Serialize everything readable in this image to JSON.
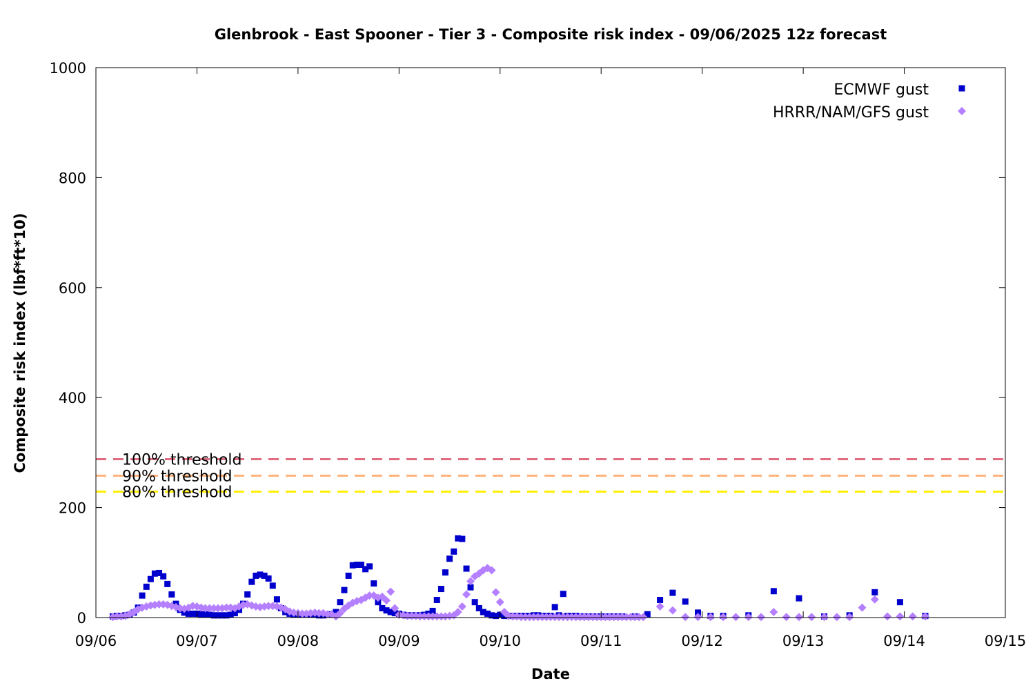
{
  "chart_data": {
    "type": "scatter",
    "title": "Glenbrook - East Spooner - Tier 3 - Composite risk index - 09/06/2025 12z forecast",
    "xlabel": "Date",
    "ylabel": "Composite risk index (lbf*ft*10)",
    "xlim": [
      0,
      9
    ],
    "ylim": [
      0,
      1000
    ],
    "x_tick_labels": [
      "09/06",
      "09/07",
      "09/08",
      "09/09",
      "09/10",
      "09/11",
      "09/12",
      "09/13",
      "09/14",
      "09/15"
    ],
    "y_ticks": [
      0,
      200,
      400,
      600,
      800,
      1000
    ],
    "grid": false,
    "legend_position": "top-right",
    "x_unit_note": "x = days since 09/06 00z",
    "thresholds": [
      {
        "name": "100% threshold",
        "value": 288,
        "color": "#e06c80"
      },
      {
        "name": "90% threshold",
        "value": 258,
        "color": "#ffb27a"
      },
      {
        "name": "80% threshold",
        "value": 229,
        "color": "#ffee00"
      }
    ],
    "series": [
      {
        "name": "ECMWF gust",
        "marker": "square",
        "color": "#0000cc",
        "points": [
          [
            0.167,
            2
          ],
          [
            0.208,
            3
          ],
          [
            0.25,
            3
          ],
          [
            0.292,
            4
          ],
          [
            0.333,
            5
          ],
          [
            0.375,
            9
          ],
          [
            0.417,
            18
          ],
          [
            0.458,
            40
          ],
          [
            0.5,
            56
          ],
          [
            0.542,
            70
          ],
          [
            0.583,
            80
          ],
          [
            0.625,
            81
          ],
          [
            0.667,
            75
          ],
          [
            0.708,
            61
          ],
          [
            0.75,
            42
          ],
          [
            0.792,
            25
          ],
          [
            0.833,
            14
          ],
          [
            0.875,
            9
          ],
          [
            0.917,
            7
          ],
          [
            0.958,
            7
          ],
          [
            1.0,
            7
          ],
          [
            1.042,
            6
          ],
          [
            1.083,
            6
          ],
          [
            1.125,
            5
          ],
          [
            1.167,
            4
          ],
          [
            1.208,
            4
          ],
          [
            1.25,
            4
          ],
          [
            1.292,
            4
          ],
          [
            1.333,
            5
          ],
          [
            1.375,
            8
          ],
          [
            1.417,
            14
          ],
          [
            1.458,
            25
          ],
          [
            1.5,
            42
          ],
          [
            1.542,
            65
          ],
          [
            1.583,
            76
          ],
          [
            1.625,
            78
          ],
          [
            1.667,
            76
          ],
          [
            1.708,
            71
          ],
          [
            1.75,
            58
          ],
          [
            1.792,
            33
          ],
          [
            1.833,
            17
          ],
          [
            1.875,
            10
          ],
          [
            1.917,
            7
          ],
          [
            1.958,
            6
          ],
          [
            2.0,
            5
          ],
          [
            2.042,
            5
          ],
          [
            2.083,
            5
          ],
          [
            2.125,
            5
          ],
          [
            2.167,
            5
          ],
          [
            2.208,
            4
          ],
          [
            2.25,
            4
          ],
          [
            2.292,
            5
          ],
          [
            2.333,
            6
          ],
          [
            2.375,
            10
          ],
          [
            2.417,
            28
          ],
          [
            2.458,
            50
          ],
          [
            2.5,
            76
          ],
          [
            2.542,
            95
          ],
          [
            2.583,
            96
          ],
          [
            2.625,
            96
          ],
          [
            2.667,
            88
          ],
          [
            2.708,
            93
          ],
          [
            2.75,
            62
          ],
          [
            2.792,
            28
          ],
          [
            2.833,
            17
          ],
          [
            2.875,
            13
          ],
          [
            2.917,
            10
          ],
          [
            2.958,
            8
          ],
          [
            3.0,
            7
          ],
          [
            3.042,
            5
          ],
          [
            3.083,
            4
          ],
          [
            3.125,
            4
          ],
          [
            3.167,
            4
          ],
          [
            3.208,
            4
          ],
          [
            3.25,
            5
          ],
          [
            3.292,
            7
          ],
          [
            3.333,
            12
          ],
          [
            3.375,
            32
          ],
          [
            3.417,
            52
          ],
          [
            3.458,
            82
          ],
          [
            3.5,
            107
          ],
          [
            3.542,
            120
          ],
          [
            3.583,
            144
          ],
          [
            3.625,
            143
          ],
          [
            3.667,
            89
          ],
          [
            3.708,
            55
          ],
          [
            3.75,
            28
          ],
          [
            3.792,
            17
          ],
          [
            3.833,
            10
          ],
          [
            3.875,
            7
          ],
          [
            3.917,
            4
          ],
          [
            3.958,
            3
          ],
          [
            4.0,
            5
          ],
          [
            4.042,
            3
          ],
          [
            4.083,
            3
          ],
          [
            4.125,
            3
          ],
          [
            4.167,
            3
          ],
          [
            4.208,
            3
          ],
          [
            4.25,
            3
          ],
          [
            4.292,
            3
          ],
          [
            4.333,
            4
          ],
          [
            4.375,
            4
          ],
          [
            4.417,
            3
          ],
          [
            4.458,
            3
          ],
          [
            4.5,
            3
          ],
          [
            4.542,
            19
          ],
          [
            4.583,
            4
          ],
          [
            4.625,
            43
          ],
          [
            4.667,
            3
          ],
          [
            4.708,
            3
          ],
          [
            4.75,
            3
          ],
          [
            4.792,
            2
          ],
          [
            4.833,
            2
          ],
          [
            4.875,
            2
          ],
          [
            4.917,
            2
          ],
          [
            4.958,
            2
          ],
          [
            5.0,
            2
          ],
          [
            5.042,
            2
          ],
          [
            5.083,
            2
          ],
          [
            5.125,
            2
          ],
          [
            5.167,
            2
          ],
          [
            5.208,
            2
          ],
          [
            5.333,
            2
          ],
          [
            5.458,
            6
          ],
          [
            5.583,
            32
          ],
          [
            5.708,
            45
          ],
          [
            5.833,
            29
          ],
          [
            5.958,
            9
          ],
          [
            6.083,
            3
          ],
          [
            6.208,
            3
          ],
          [
            6.458,
            4
          ],
          [
            6.708,
            48
          ],
          [
            6.958,
            35
          ],
          [
            7.208,
            2
          ],
          [
            7.458,
            4
          ],
          [
            7.708,
            46
          ],
          [
            7.958,
            28
          ],
          [
            8.208,
            3
          ]
        ]
      },
      {
        "name": "HRRR/NAM/GFS gust",
        "marker": "diamond",
        "color": "#b580ff",
        "points": [
          [
            0.167,
            1
          ],
          [
            0.208,
            2
          ],
          [
            0.25,
            2
          ],
          [
            0.292,
            3
          ],
          [
            0.333,
            6
          ],
          [
            0.375,
            10
          ],
          [
            0.417,
            15
          ],
          [
            0.458,
            18
          ],
          [
            0.5,
            20
          ],
          [
            0.542,
            22
          ],
          [
            0.583,
            23
          ],
          [
            0.625,
            24
          ],
          [
            0.667,
            24
          ],
          [
            0.708,
            23
          ],
          [
            0.75,
            21
          ],
          [
            0.792,
            19
          ],
          [
            0.833,
            17
          ],
          [
            0.875,
            16
          ],
          [
            0.917,
            18
          ],
          [
            0.958,
            21
          ],
          [
            1.0,
            20
          ],
          [
            1.042,
            18
          ],
          [
            1.083,
            17
          ],
          [
            1.125,
            17
          ],
          [
            1.167,
            17
          ],
          [
            1.208,
            17
          ],
          [
            1.25,
            17
          ],
          [
            1.292,
            18
          ],
          [
            1.333,
            18
          ],
          [
            1.375,
            17
          ],
          [
            1.417,
            20
          ],
          [
            1.458,
            23
          ],
          [
            1.5,
            24
          ],
          [
            1.542,
            22
          ],
          [
            1.583,
            20
          ],
          [
            1.625,
            19
          ],
          [
            1.667,
            20
          ],
          [
            1.708,
            21
          ],
          [
            1.75,
            21
          ],
          [
            1.792,
            20
          ],
          [
            1.833,
            18
          ],
          [
            1.875,
            15
          ],
          [
            1.917,
            11
          ],
          [
            1.958,
            9
          ],
          [
            2.0,
            8
          ],
          [
            2.042,
            7
          ],
          [
            2.083,
            7
          ],
          [
            2.125,
            8
          ],
          [
            2.167,
            9
          ],
          [
            2.208,
            8
          ],
          [
            2.25,
            8
          ],
          [
            2.292,
            6
          ],
          [
            2.333,
            6
          ],
          [
            2.375,
            2
          ],
          [
            2.417,
            8
          ],
          [
            2.458,
            16
          ],
          [
            2.5,
            22
          ],
          [
            2.542,
            27
          ],
          [
            2.583,
            30
          ],
          [
            2.625,
            32
          ],
          [
            2.667,
            36
          ],
          [
            2.708,
            40
          ],
          [
            2.75,
            40
          ],
          [
            2.792,
            36
          ],
          [
            2.833,
            38
          ],
          [
            2.875,
            31
          ],
          [
            2.917,
            47
          ],
          [
            2.958,
            17
          ],
          [
            3.0,
            5
          ],
          [
            3.042,
            4
          ],
          [
            3.083,
            3
          ],
          [
            3.125,
            3
          ],
          [
            3.167,
            3
          ],
          [
            3.208,
            2
          ],
          [
            3.25,
            2
          ],
          [
            3.292,
            2
          ],
          [
            3.333,
            2
          ],
          [
            3.375,
            2
          ],
          [
            3.417,
            2
          ],
          [
            3.458,
            2
          ],
          [
            3.5,
            3
          ],
          [
            3.542,
            4
          ],
          [
            3.583,
            10
          ],
          [
            3.625,
            20
          ],
          [
            3.667,
            42
          ],
          [
            3.708,
            66
          ],
          [
            3.75,
            75
          ],
          [
            3.792,
            80
          ],
          [
            3.833,
            86
          ],
          [
            3.875,
            90
          ],
          [
            3.917,
            86
          ],
          [
            3.958,
            46
          ],
          [
            4.0,
            28
          ],
          [
            4.042,
            10
          ],
          [
            4.083,
            3
          ],
          [
            4.125,
            2
          ],
          [
            4.167,
            2
          ],
          [
            4.208,
            1
          ],
          [
            4.25,
            1
          ],
          [
            4.292,
            1
          ],
          [
            4.333,
            1
          ],
          [
            4.375,
            1
          ],
          [
            4.417,
            1
          ],
          [
            4.458,
            1
          ],
          [
            4.5,
            1
          ],
          [
            4.542,
            1
          ],
          [
            4.583,
            1
          ],
          [
            4.625,
            1
          ],
          [
            4.667,
            1
          ],
          [
            4.708,
            1
          ],
          [
            4.75,
            1
          ],
          [
            4.792,
            1
          ],
          [
            4.833,
            1
          ],
          [
            4.875,
            1
          ],
          [
            4.917,
            1
          ],
          [
            4.958,
            1
          ],
          [
            5.0,
            1
          ],
          [
            5.042,
            1
          ],
          [
            5.083,
            1
          ],
          [
            5.125,
            1
          ],
          [
            5.167,
            1
          ],
          [
            5.208,
            1
          ],
          [
            5.25,
            1
          ],
          [
            5.292,
            1
          ],
          [
            5.333,
            1
          ],
          [
            5.375,
            1
          ],
          [
            5.417,
            1
          ],
          [
            5.583,
            20
          ],
          [
            5.708,
            13
          ],
          [
            5.833,
            1
          ],
          [
            5.958,
            1
          ],
          [
            6.083,
            1
          ],
          [
            6.208,
            1
          ],
          [
            6.333,
            1
          ],
          [
            6.458,
            1
          ],
          [
            6.583,
            1
          ],
          [
            6.708,
            10
          ],
          [
            6.833,
            1
          ],
          [
            6.958,
            1
          ],
          [
            7.083,
            1
          ],
          [
            7.208,
            1
          ],
          [
            7.333,
            1
          ],
          [
            7.458,
            1
          ],
          [
            7.583,
            18
          ],
          [
            7.708,
            33
          ],
          [
            7.833,
            2
          ],
          [
            7.958,
            2
          ],
          [
            8.083,
            2
          ],
          [
            8.208,
            2
          ]
        ]
      }
    ]
  }
}
